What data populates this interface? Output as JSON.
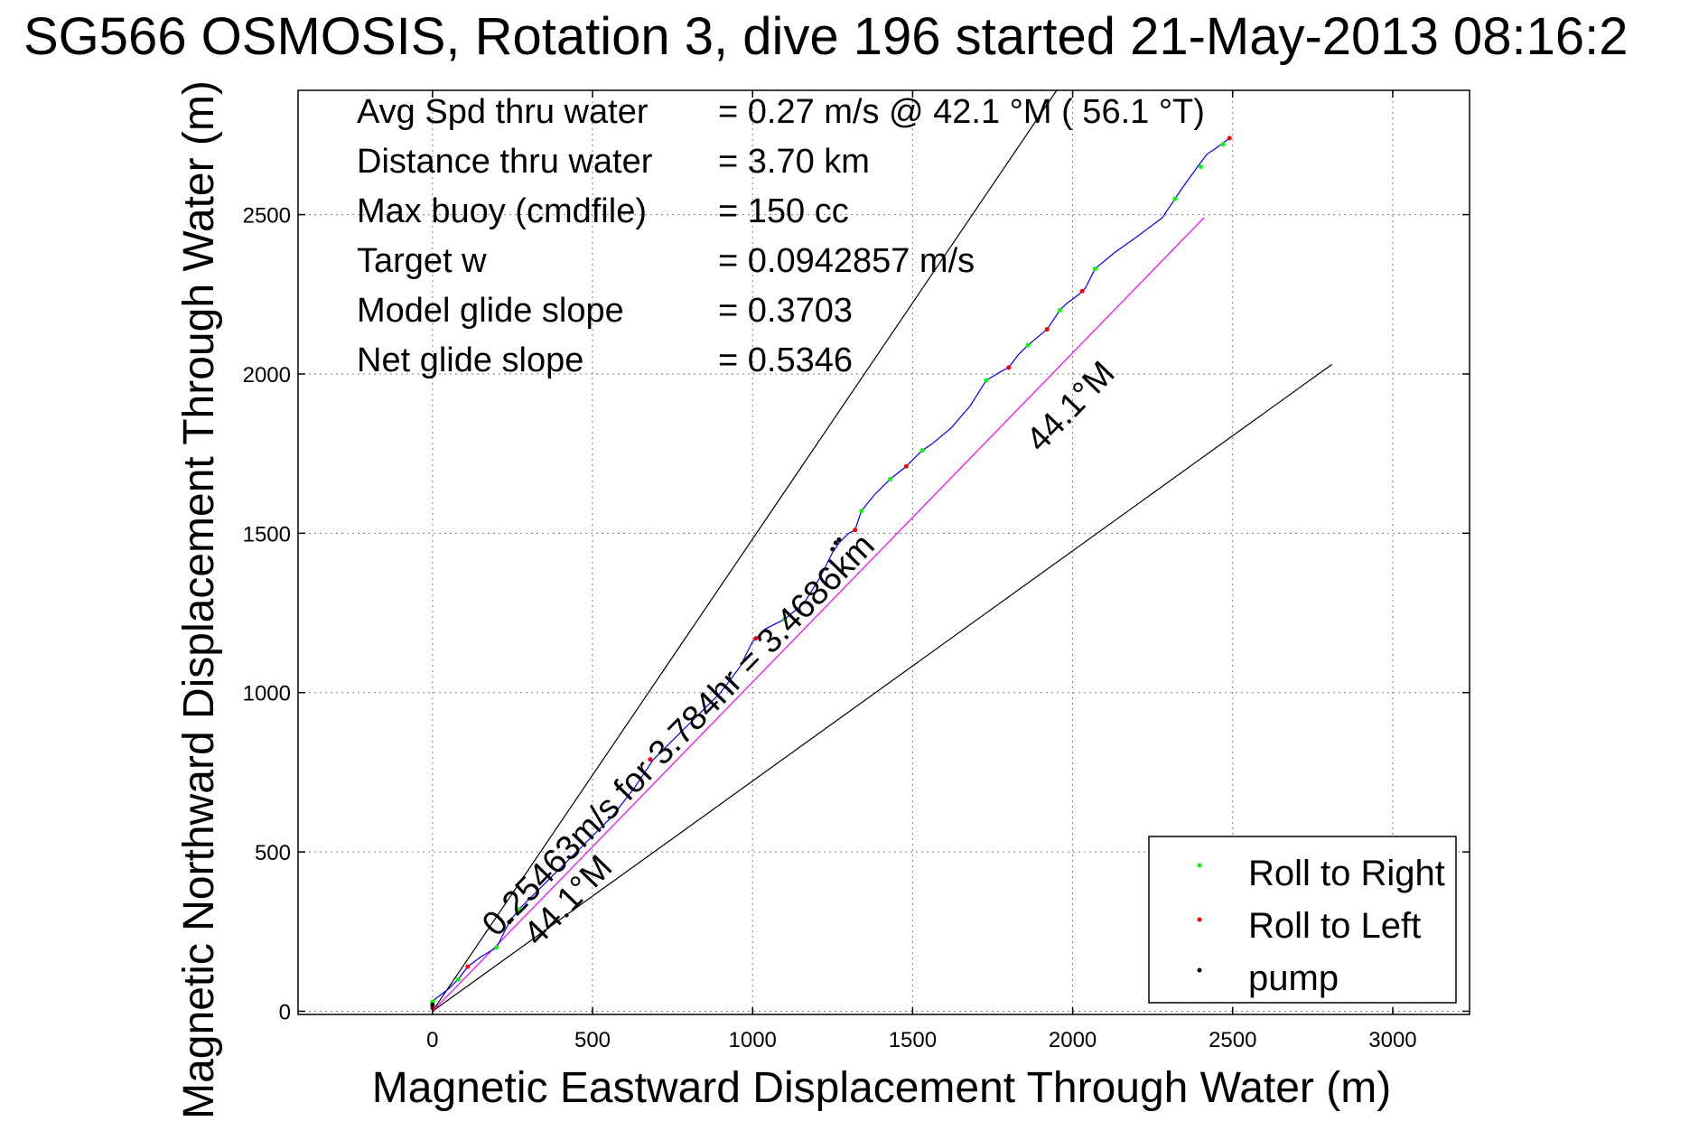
{
  "title": "SG566 OSMOSIS, Rotation 3, dive 196 started 21-May-2013 08:16:2",
  "chart_data": {
    "type": "line",
    "xlabel": "Magnetic Eastward Displacement Through Water (m)",
    "ylabel": "Magnetic Northward Displacement Through Water (m)",
    "xlim": [
      -420,
      3240
    ],
    "ylim": [
      -10,
      2890
    ],
    "xticks": [
      0,
      500,
      1000,
      1500,
      2000,
      2500,
      3000
    ],
    "yticks": [
      0,
      500,
      1000,
      1500,
      2000,
      2500
    ],
    "xtick_labels": [
      "0",
      "500",
      "1000",
      "1500",
      "2000",
      "2500",
      "3000"
    ],
    "ytick_labels": [
      "0",
      "500",
      "1000",
      "1500",
      "2000",
      "2500"
    ],
    "grid": true,
    "stats": [
      {
        "label": "Avg Spd thru water",
        "value": "=  0.27 m/s @  42.1 °M ( 56.1 °T)"
      },
      {
        "label": "Distance thru water",
        "value": "=  3.70 km"
      },
      {
        "label": "Max buoy (cmdfile)",
        "value": "= 150 cc"
      },
      {
        "label": "Target w",
        "value": "= 0.0942857 m/s"
      },
      {
        "label": "Model glide slope",
        "value": "= 0.3703"
      },
      {
        "label": "Net glide slope",
        "value": "= 0.5346"
      }
    ],
    "annotations": {
      "speed_line": "0.25463m/s for 3.784hr = 3.4686km",
      "heading_upper": "44.1°M",
      "heading_lower": "44.1°M"
    },
    "reference_lines": [
      {
        "name": "bound_upper",
        "color": "#000000",
        "points": [
          [
            0,
            0
          ],
          [
            1950,
            2890
          ]
        ]
      },
      {
        "name": "bound_lower",
        "color": "#000000",
        "points": [
          [
            0,
            0
          ],
          [
            2810,
            2030
          ]
        ]
      },
      {
        "name": "heading_44.1",
        "color": "#ff00ff",
        "points": [
          [
            0,
            0
          ],
          [
            2410,
            2490
          ]
        ]
      }
    ],
    "series": [
      {
        "name": "track",
        "color": "#0000ff",
        "points": [
          [
            0,
            0
          ],
          [
            0,
            30
          ],
          [
            10,
            40
          ],
          [
            50,
            70
          ],
          [
            80,
            100
          ],
          [
            110,
            140
          ],
          [
            150,
            170
          ],
          [
            200,
            200
          ],
          [
            215,
            230
          ],
          [
            240,
            280
          ],
          [
            270,
            320
          ],
          [
            330,
            380
          ],
          [
            400,
            450
          ],
          [
            480,
            530
          ],
          [
            560,
            610
          ],
          [
            630,
            700
          ],
          [
            690,
            790
          ],
          [
            760,
            860
          ],
          [
            830,
            930
          ],
          [
            900,
            1000
          ],
          [
            960,
            1080
          ],
          [
            1000,
            1160
          ],
          [
            1010,
            1170
          ],
          [
            1040,
            1200
          ],
          [
            1100,
            1230
          ],
          [
            1160,
            1280
          ],
          [
            1210,
            1360
          ],
          [
            1250,
            1440
          ],
          [
            1270,
            1470
          ],
          [
            1300,
            1500
          ],
          [
            1320,
            1510
          ],
          [
            1340,
            1570
          ],
          [
            1380,
            1620
          ],
          [
            1430,
            1670
          ],
          [
            1480,
            1710
          ],
          [
            1500,
            1730
          ],
          [
            1530,
            1760
          ],
          [
            1560,
            1780
          ],
          [
            1620,
            1830
          ],
          [
            1680,
            1900
          ],
          [
            1730,
            1980
          ],
          [
            1780,
            2010
          ],
          [
            1800,
            2020
          ],
          [
            1830,
            2060
          ],
          [
            1860,
            2090
          ],
          [
            1920,
            2140
          ],
          [
            1960,
            2200
          ],
          [
            1980,
            2220
          ],
          [
            2020,
            2250
          ],
          [
            2040,
            2270
          ],
          [
            2070,
            2330
          ],
          [
            2130,
            2380
          ],
          [
            2200,
            2430
          ],
          [
            2280,
            2490
          ],
          [
            2320,
            2550
          ],
          [
            2340,
            2580
          ],
          [
            2390,
            2650
          ],
          [
            2420,
            2690
          ],
          [
            2450,
            2710
          ],
          [
            2490,
            2740
          ]
        ]
      }
    ],
    "markers": {
      "roll_right": {
        "name": "Roll to Right",
        "color": "#00ff00",
        "points": [
          [
            0,
            30
          ],
          [
            80,
            100
          ],
          [
            200,
            200
          ],
          [
            270,
            320
          ],
          [
            1100,
            1230
          ],
          [
            1340,
            1570
          ],
          [
            1430,
            1670
          ],
          [
            1530,
            1760
          ],
          [
            1730,
            1980
          ],
          [
            1860,
            2090
          ],
          [
            1960,
            2200
          ],
          [
            2070,
            2330
          ],
          [
            2320,
            2550
          ],
          [
            2400,
            2650
          ],
          [
            2470,
            2720
          ]
        ]
      },
      "roll_left": {
        "name": "Roll to Left",
        "color": "#ff0000",
        "points": [
          [
            0,
            10
          ],
          [
            110,
            140
          ],
          [
            680,
            790
          ],
          [
            1010,
            1170
          ],
          [
            1320,
            1510
          ],
          [
            1480,
            1710
          ],
          [
            1800,
            2020
          ],
          [
            1920,
            2140
          ],
          [
            2030,
            2260
          ],
          [
            2490,
            2740
          ]
        ]
      },
      "pump": {
        "name": "pump",
        "color": "#000000",
        "points": [
          [
            0,
            20
          ],
          [
            240,
            280
          ],
          [
            1250,
            1450
          ],
          [
            1260,
            1470
          ],
          [
            1270,
            1480
          ]
        ]
      }
    }
  }
}
